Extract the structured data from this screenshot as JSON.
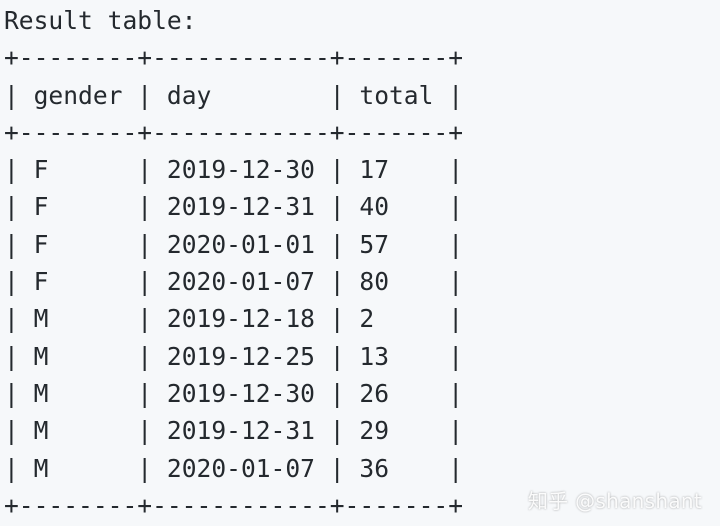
{
  "caption": "Result table:",
  "border": "+--------+------------+-------+",
  "columns": [
    "gender",
    "day",
    "total"
  ],
  "rows": [
    [
      "F",
      "2019-12-30",
      "17"
    ],
    [
      "F",
      "2019-12-31",
      "40"
    ],
    [
      "F",
      "2020-01-01",
      "57"
    ],
    [
      "F",
      "2020-01-07",
      "80"
    ],
    [
      "M",
      "2019-12-18",
      "2"
    ],
    [
      "M",
      "2019-12-25",
      "13"
    ],
    [
      "M",
      "2019-12-30",
      "26"
    ],
    [
      "M",
      "2019-12-31",
      "29"
    ],
    [
      "M",
      "2020-01-07",
      "36"
    ]
  ],
  "watermark": "知乎 @shanshant",
  "colors": {
    "background": "#f6f8fa",
    "text": "#24292e"
  }
}
